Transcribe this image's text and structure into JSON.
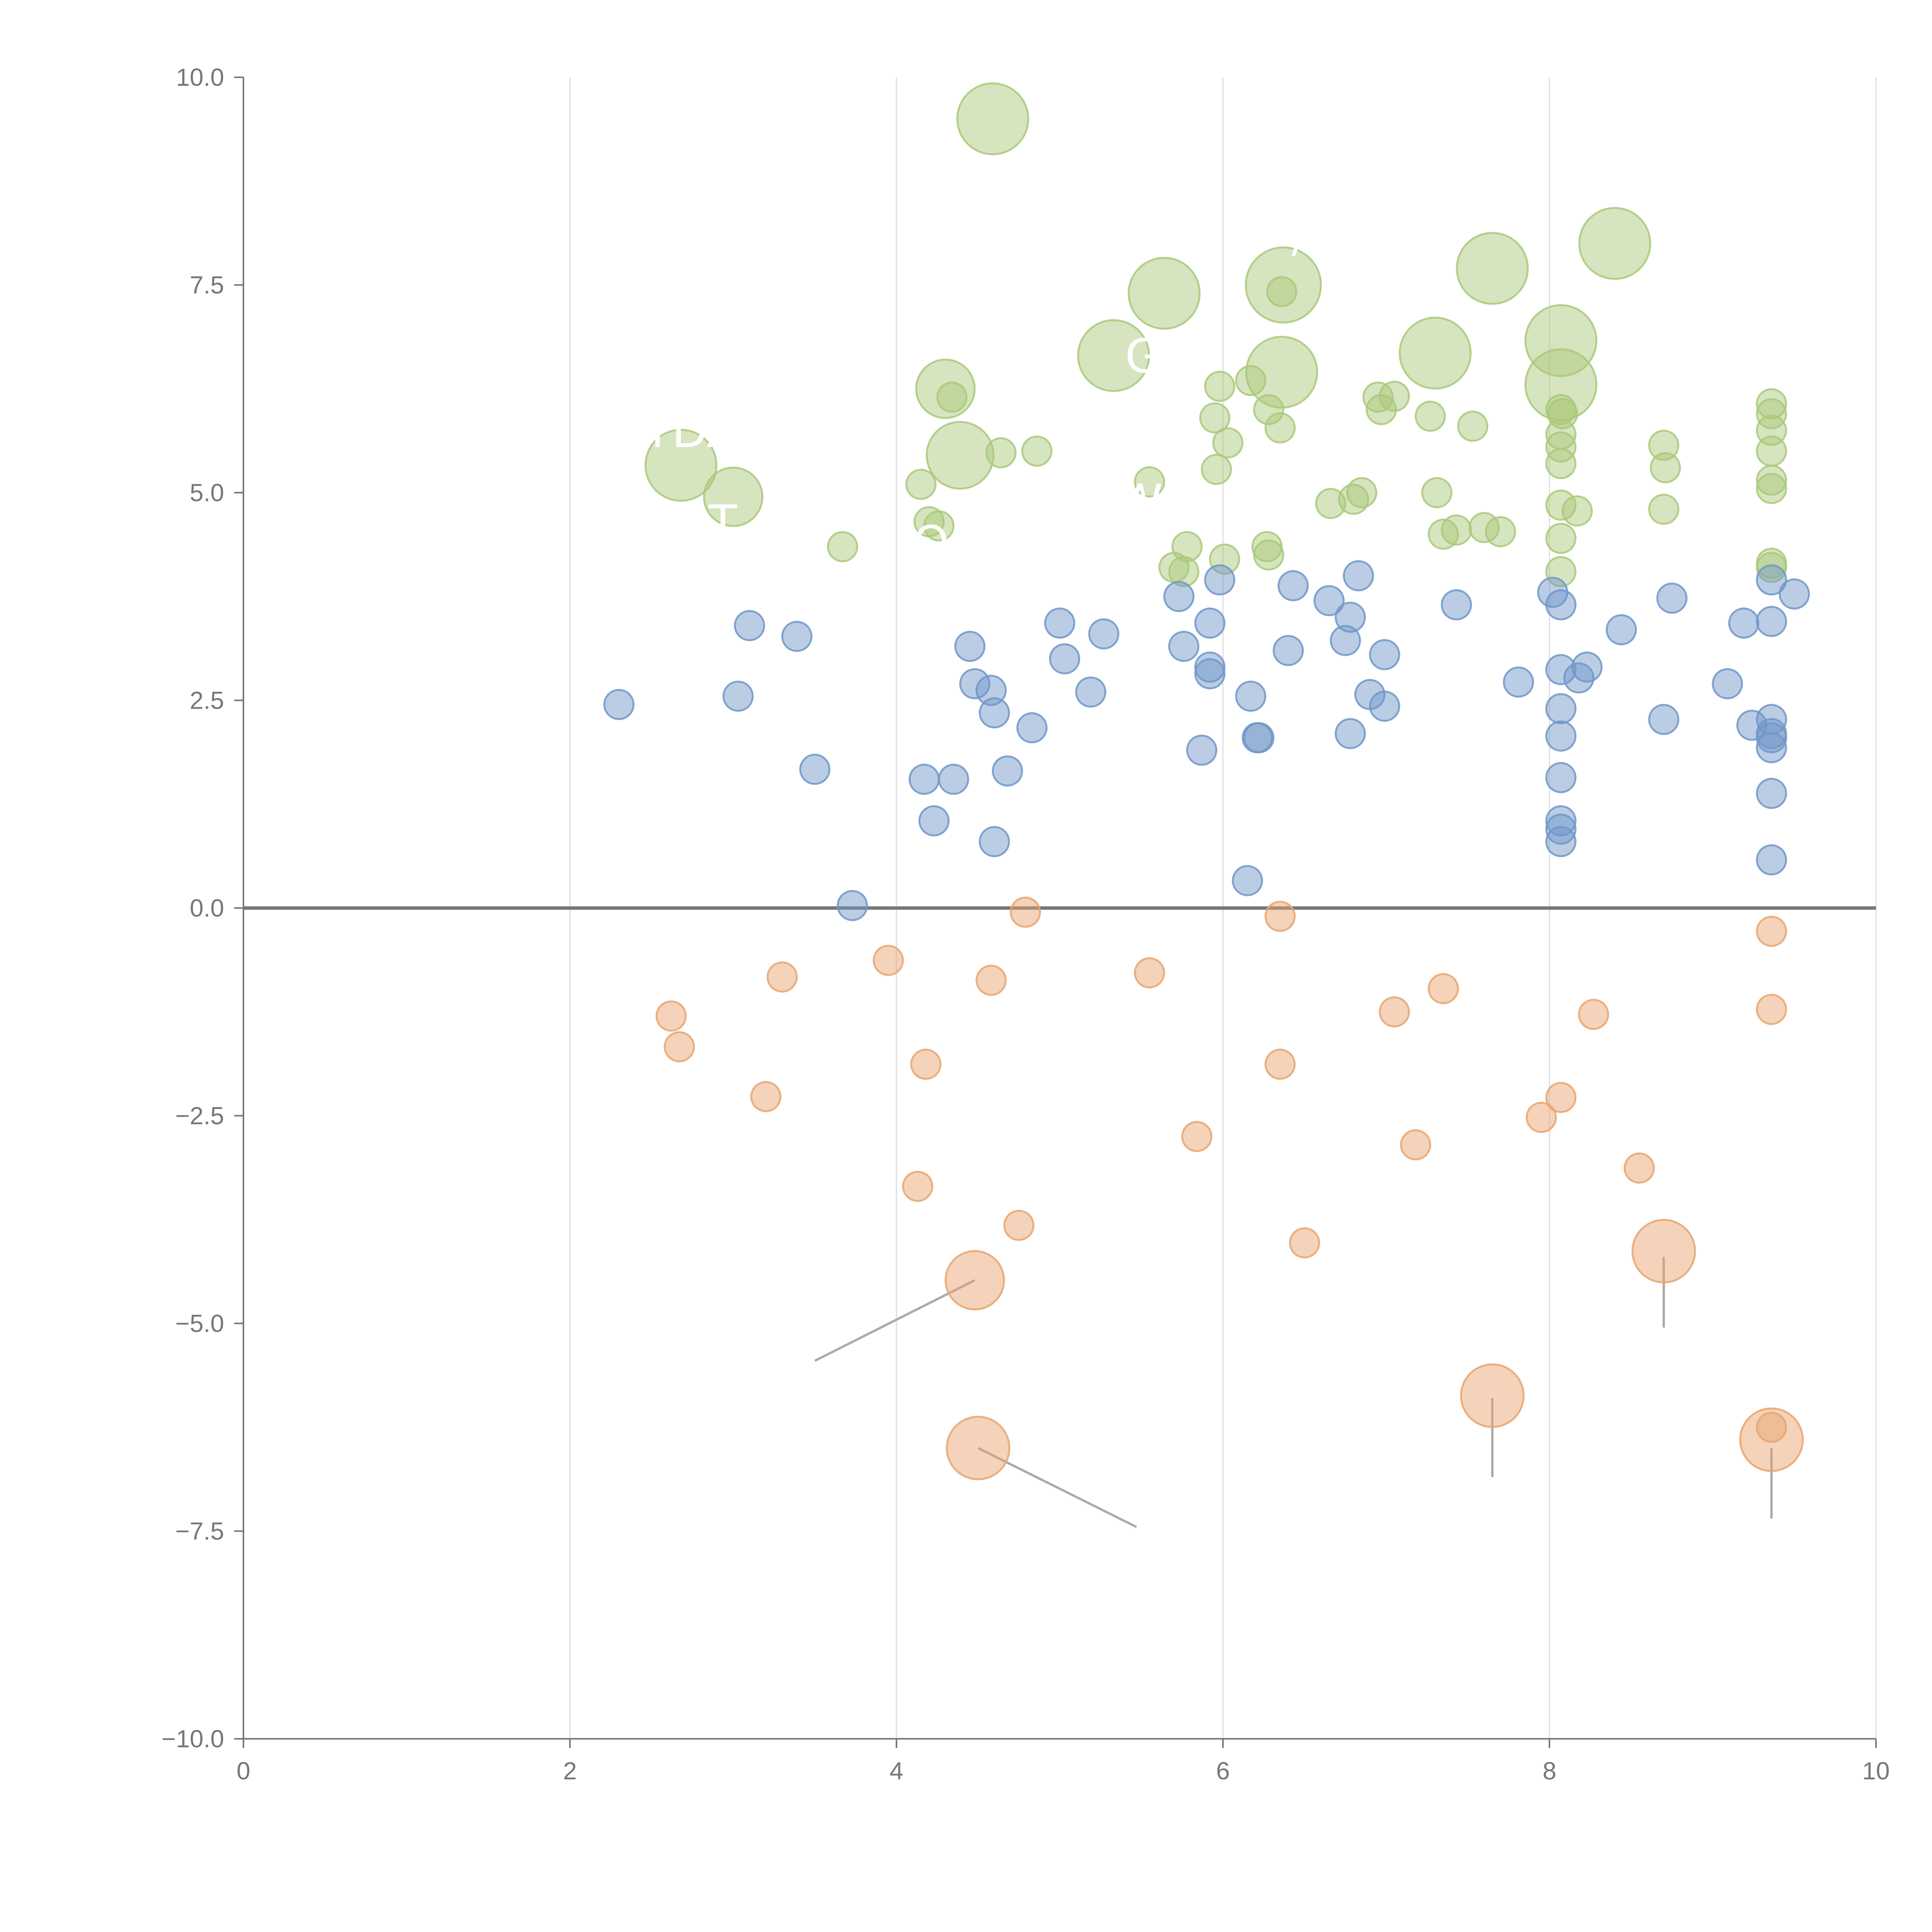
{
  "chart_data": {
    "type": "scatter",
    "title": "",
    "xlabel": "",
    "ylabel": "",
    "xlim": [
      0,
      10
    ],
    "ylim": [
      -10,
      10
    ],
    "grid": "vertical",
    "x_ticks": [
      "0",
      "2",
      "4",
      "6",
      "8",
      "10"
    ],
    "y_ticks": [
      "10.0",
      "7.5",
      "5.0",
      "2.5",
      "0.0",
      "−2.5",
      "−5.0",
      "−7.5",
      "−10.0"
    ],
    "colors": {
      "green": "#a9c97a",
      "blue": "#7096c8",
      "orange": "#e8a46e"
    },
    "series": [
      {
        "name": "green",
        "color_key": "green",
        "points": [
          [
            4.59,
            9.5,
            1.7
          ],
          [
            6.37,
            7.5,
            1.8
          ],
          [
            7.65,
            7.7,
            1.7
          ],
          [
            8.4,
            8.0,
            1.7
          ],
          [
            5.64,
            7.4,
            1.7
          ],
          [
            6.36,
            6.45,
            1.7
          ],
          [
            7.3,
            6.68,
            1.7
          ],
          [
            8.07,
            6.83,
            1.7
          ],
          [
            8.07,
            6.3,
            1.7
          ],
          [
            5.33,
            6.65,
            1.7
          ],
          [
            4.3,
            6.25,
            1.4
          ],
          [
            4.39,
            5.45,
            1.6
          ],
          [
            2.68,
            5.33,
            1.7
          ],
          [
            3.0,
            4.95,
            1.4
          ],
          [
            6.36,
            7.42,
            0.7
          ],
          [
            4.34,
            6.15,
            0.7
          ],
          [
            4.64,
            5.48,
            0.7
          ],
          [
            4.86,
            5.5,
            0.7
          ],
          [
            4.15,
            5.1,
            0.7
          ],
          [
            4.2,
            4.65,
            0.7
          ],
          [
            4.26,
            4.6,
            0.7
          ],
          [
            3.67,
            4.35,
            0.7
          ],
          [
            5.55,
            5.13,
            0.7
          ],
          [
            5.96,
            5.28,
            0.7
          ],
          [
            6.03,
            5.6,
            0.7
          ],
          [
            5.95,
            5.9,
            0.7
          ],
          [
            5.98,
            6.28,
            0.7
          ],
          [
            6.17,
            6.35,
            0.7
          ],
          [
            6.28,
            6.0,
            0.7
          ],
          [
            6.35,
            5.78,
            0.7
          ],
          [
            6.66,
            4.87,
            0.7
          ],
          [
            6.8,
            4.92,
            0.7
          ],
          [
            6.85,
            5.0,
            0.7
          ],
          [
            6.95,
            6.15,
            0.7
          ],
          [
            6.97,
            6.0,
            0.7
          ],
          [
            7.05,
            6.16,
            0.7
          ],
          [
            7.27,
            5.92,
            0.7
          ],
          [
            7.53,
            5.8,
            0.7
          ],
          [
            7.31,
            5.0,
            0.7
          ],
          [
            7.35,
            4.5,
            0.7
          ],
          [
            7.43,
            4.55,
            0.7
          ],
          [
            7.6,
            4.58,
            0.7
          ],
          [
            7.7,
            4.53,
            0.7
          ],
          [
            5.78,
            4.35,
            0.7
          ],
          [
            5.7,
            4.1,
            0.7
          ],
          [
            5.76,
            4.05,
            0.7
          ],
          [
            6.01,
            4.2,
            0.7
          ],
          [
            6.27,
            4.35,
            0.7
          ],
          [
            6.28,
            4.25,
            0.7
          ],
          [
            8.07,
            6.0,
            0.7
          ],
          [
            8.08,
            5.95,
            0.7
          ],
          [
            8.07,
            5.7,
            0.7
          ],
          [
            8.07,
            5.55,
            0.7
          ],
          [
            8.07,
            5.35,
            0.7
          ],
          [
            8.07,
            4.85,
            0.7
          ],
          [
            8.17,
            4.78,
            0.7
          ],
          [
            8.07,
            4.45,
            0.7
          ],
          [
            8.07,
            4.05,
            0.7
          ],
          [
            8.7,
            5.57,
            0.7
          ],
          [
            8.71,
            5.3,
            0.7
          ],
          [
            8.7,
            4.8,
            0.7
          ],
          [
            9.36,
            6.07,
            0.7
          ],
          [
            9.36,
            5.95,
            0.7
          ],
          [
            9.36,
            5.75,
            0.7
          ],
          [
            9.36,
            5.5,
            0.7
          ],
          [
            9.36,
            5.15,
            0.7
          ],
          [
            9.36,
            5.05,
            0.7
          ],
          [
            9.36,
            4.15,
            0.7
          ],
          [
            9.36,
            4.1,
            0.7
          ]
        ]
      },
      {
        "name": "blue",
        "color_key": "blue",
        "points": [
          [
            2.3,
            2.45,
            0.7
          ],
          [
            3.03,
            2.55,
            0.7
          ],
          [
            3.1,
            3.4,
            0.7
          ],
          [
            3.39,
            3.27,
            0.7
          ],
          [
            3.5,
            1.67,
            0.7
          ],
          [
            3.73,
            0.03,
            0.7
          ],
          [
            4.17,
            1.55,
            0.7
          ],
          [
            4.23,
            1.05,
            0.7
          ],
          [
            4.35,
            1.55,
            0.7
          ],
          [
            4.45,
            3.15,
            0.7
          ],
          [
            4.48,
            2.7,
            0.7
          ],
          [
            4.58,
            2.62,
            0.7
          ],
          [
            4.6,
            2.35,
            0.7
          ],
          [
            4.6,
            0.8,
            0.7
          ],
          [
            4.68,
            1.65,
            0.7
          ],
          [
            4.83,
            2.17,
            0.7
          ],
          [
            5.0,
            3.43,
            0.7
          ],
          [
            5.03,
            3.0,
            0.7
          ],
          [
            5.19,
            2.6,
            0.7
          ],
          [
            5.27,
            3.3,
            0.7
          ],
          [
            5.73,
            3.75,
            0.7
          ],
          [
            5.76,
            3.15,
            0.7
          ],
          [
            5.87,
            1.9,
            0.7
          ],
          [
            5.92,
            3.43,
            0.7
          ],
          [
            5.92,
            2.9,
            0.7
          ],
          [
            5.92,
            2.82,
            0.7
          ],
          [
            5.98,
            3.95,
            0.7
          ],
          [
            6.15,
            0.33,
            0.7
          ],
          [
            6.17,
            2.55,
            0.7
          ],
          [
            6.21,
            2.05,
            0.7
          ],
          [
            6.22,
            2.05,
            0.7
          ],
          [
            6.4,
            3.1,
            0.7
          ],
          [
            6.43,
            3.88,
            0.7
          ],
          [
            6.65,
            3.7,
            0.7
          ],
          [
            6.75,
            3.22,
            0.7
          ],
          [
            6.78,
            3.5,
            0.7
          ],
          [
            6.78,
            2.1,
            0.7
          ],
          [
            6.83,
            4.0,
            0.7
          ],
          [
            6.9,
            2.57,
            0.7
          ],
          [
            6.99,
            2.43,
            0.7
          ],
          [
            6.99,
            3.05,
            0.7
          ],
          [
            7.43,
            3.65,
            0.7
          ],
          [
            7.81,
            2.72,
            0.7
          ],
          [
            8.02,
            3.8,
            0.7
          ],
          [
            8.07,
            3.65,
            0.7
          ],
          [
            8.07,
            2.87,
            0.7
          ],
          [
            8.07,
            2.4,
            0.7
          ],
          [
            8.07,
            2.07,
            0.7
          ],
          [
            8.07,
            1.57,
            0.7
          ],
          [
            8.07,
            1.05,
            0.7
          ],
          [
            8.07,
            0.95,
            0.7
          ],
          [
            8.07,
            0.8,
            0.7
          ],
          [
            8.18,
            2.77,
            0.7
          ],
          [
            8.23,
            2.9,
            0.7
          ],
          [
            8.44,
            3.35,
            0.7
          ],
          [
            8.7,
            2.27,
            0.7
          ],
          [
            8.75,
            3.73,
            0.7
          ],
          [
            9.09,
            2.7,
            0.7
          ],
          [
            9.19,
            3.43,
            0.7
          ],
          [
            9.24,
            2.2,
            0.7
          ],
          [
            9.36,
            3.95,
            0.7
          ],
          [
            9.36,
            3.45,
            0.7
          ],
          [
            9.36,
            2.27,
            0.7
          ],
          [
            9.36,
            2.1,
            0.7
          ],
          [
            9.36,
            2.05,
            0.7
          ],
          [
            9.36,
            1.93,
            0.7
          ],
          [
            9.36,
            1.38,
            0.7
          ],
          [
            9.36,
            0.58,
            0.7
          ],
          [
            9.5,
            3.78,
            0.7
          ]
        ]
      },
      {
        "name": "orange",
        "color_key": "orange",
        "points": [
          [
            2.62,
            -1.3,
            0.7
          ],
          [
            2.67,
            -1.67,
            0.7
          ],
          [
            3.2,
            -2.27,
            0.7
          ],
          [
            3.3,
            -0.83,
            0.7
          ],
          [
            3.95,
            -0.63,
            0.7
          ],
          [
            4.13,
            -3.35,
            0.7
          ],
          [
            4.18,
            -1.88,
            0.7
          ],
          [
            4.58,
            -0.87,
            0.7
          ],
          [
            4.75,
            -3.82,
            0.7
          ],
          [
            4.79,
            -0.05,
            0.7
          ],
          [
            5.55,
            -0.78,
            0.7
          ],
          [
            5.84,
            -2.75,
            0.7
          ],
          [
            6.35,
            -0.1,
            0.7
          ],
          [
            6.35,
            -1.88,
            0.7
          ],
          [
            6.5,
            -4.03,
            0.7
          ],
          [
            7.05,
            -1.25,
            0.7
          ],
          [
            7.18,
            -2.85,
            0.7
          ],
          [
            7.35,
            -0.97,
            0.7
          ],
          [
            7.95,
            -2.52,
            0.7
          ],
          [
            8.07,
            -2.28,
            0.7
          ],
          [
            8.27,
            -1.28,
            0.7
          ],
          [
            8.55,
            -3.13,
            0.7
          ],
          [
            9.36,
            -0.28,
            0.7
          ],
          [
            9.36,
            -1.22,
            0.7
          ],
          [
            9.36,
            -6.25,
            0.7
          ],
          [
            4.48,
            -4.48,
            1.4
          ],
          [
            4.5,
            -6.5,
            1.5
          ],
          [
            7.65,
            -5.87,
            1.5
          ],
          [
            8.7,
            -4.13,
            1.5
          ],
          [
            9.36,
            -6.4,
            1.5
          ]
        ]
      }
    ],
    "callouts": [
      {
        "from": [
          4.48,
          -4.48
        ],
        "to": [
          3.5,
          -5.45
        ]
      },
      {
        "from": [
          4.5,
          -6.5
        ],
        "to": [
          5.47,
          -7.45
        ]
      },
      {
        "from": [
          7.65,
          -5.9
        ],
        "to": [
          7.65,
          -6.85
        ]
      },
      {
        "from": [
          8.7,
          -4.2
        ],
        "to": [
          8.7,
          -5.05
        ]
      },
      {
        "from": [
          9.36,
          -6.5
        ],
        "to": [
          9.36,
          -7.35
        ]
      },
      {
        "from": [
          4.64,
          9.5
        ],
        "to": [
          4.78,
          9.52
        ]
      },
      {
        "from": [
          5.64,
          7.4
        ],
        "to": [
          5.45,
          7.5
        ]
      },
      {
        "from": [
          6.37,
          7.55
        ],
        "to": [
          6.42,
          7.9
        ]
      },
      {
        "from": [
          7.65,
          7.7
        ],
        "to": [
          7.56,
          7.95
        ]
      },
      {
        "from": [
          8.4,
          8.0
        ],
        "to": [
          8.52,
          8.2
        ]
      },
      {
        "from": [
          8.07,
          6.85
        ],
        "to": [
          8.05,
          7.25
        ]
      },
      {
        "from": [
          7.3,
          6.7
        ],
        "to": [
          7.28,
          7.0
        ]
      },
      {
        "from": [
          6.36,
          6.45
        ],
        "to": [
          6.2,
          6.6
        ]
      },
      {
        "from": [
          5.33,
          6.6
        ],
        "to": [
          5.3,
          6.95
        ]
      },
      {
        "from": [
          4.3,
          6.25
        ],
        "to": [
          4.15,
          6.45
        ]
      },
      {
        "from": [
          4.39,
          5.5
        ],
        "to": [
          4.38,
          5.8
        ]
      },
      {
        "from": [
          3.0,
          4.95
        ],
        "to": [
          2.87,
          4.78
        ]
      },
      {
        "from": [
          8.07,
          6.32
        ],
        "to": [
          8.27,
          6.4
        ]
      }
    ],
    "annotations": [
      {
        "text": "YDA",
        "x": 2.45,
        "y": 5.55
      },
      {
        "text": "T",
        "x": 2.85,
        "y": 4.45
      },
      {
        "text": "O",
        "x": 4.1,
        "y": 4.2
      },
      {
        "text": "GM",
        "x": 5.4,
        "y": 6.45
      },
      {
        "text": "W",
        "x": 5.35,
        "y": 4.7
      },
      {
        "text": "/",
        "x": 6.42,
        "y": 7.9
      }
    ]
  }
}
